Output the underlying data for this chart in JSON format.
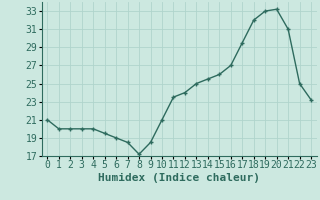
{
  "x": [
    0,
    1,
    2,
    3,
    4,
    5,
    6,
    7,
    8,
    9,
    10,
    11,
    12,
    13,
    14,
    15,
    16,
    17,
    18,
    19,
    20,
    21,
    22,
    23
  ],
  "y": [
    21,
    20,
    20,
    20,
    20,
    19.5,
    19,
    18.5,
    17.2,
    18.5,
    21,
    23.5,
    24,
    25,
    25.5,
    26,
    27,
    29.5,
    32,
    33,
    33.2,
    31,
    25,
    23.2
  ],
  "xlabel": "Humidex (Indice chaleur)",
  "xlim": [
    -0.5,
    23.5
  ],
  "ylim": [
    17,
    34
  ],
  "yticks": [
    17,
    19,
    21,
    23,
    25,
    27,
    29,
    31,
    33
  ],
  "xticks": [
    0,
    1,
    2,
    3,
    4,
    5,
    6,
    7,
    8,
    9,
    10,
    11,
    12,
    13,
    14,
    15,
    16,
    17,
    18,
    19,
    20,
    21,
    22,
    23
  ],
  "line_color": "#2e6b5e",
  "bg_color": "#cce8e0",
  "grid_color": "#b0d4cc",
  "tick_fontsize": 7,
  "label_fontsize": 8
}
